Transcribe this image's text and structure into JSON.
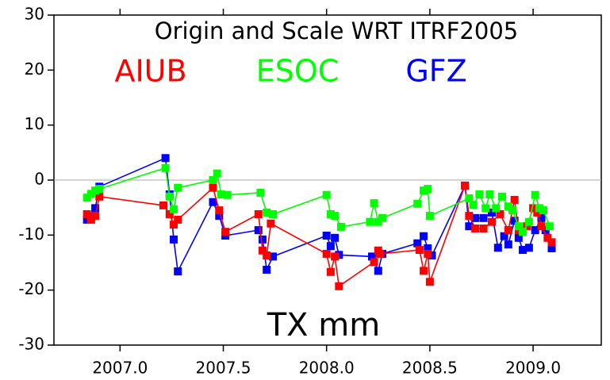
{
  "chart_data": {
    "type": "line",
    "title": "Origin and Scale WRT ITRF2005",
    "x_label": "TX mm",
    "xlim": [
      2006.68,
      2009.33
    ],
    "xticks": [
      {
        "value": 2007,
        "label": "2007.0"
      },
      {
        "value": 2007.5,
        "label": "2007.5"
      },
      {
        "value": 2008,
        "label": "2008.0"
      },
      {
        "value": 2008.5,
        "label": "2008.5"
      },
      {
        "value": 2009,
        "label": "2009.0"
      }
    ],
    "ylim": [
      -30,
      30
    ],
    "yticks": [
      -30,
      -20,
      -10,
      0,
      10,
      20,
      30
    ],
    "zero_line": true,
    "series": [
      {
        "name": "AIUB",
        "color": "#ff0000",
        "x": [
          2006.84,
          2006.86,
          2006.88,
          2006.9,
          2007.21,
          2007.24,
          2007.26,
          2007.28,
          2007.45,
          2007.48,
          2007.51,
          2007.67,
          2007.69,
          2007.71,
          2007.73,
          2008.0,
          2008.02,
          2008.04,
          2008.06,
          2008.23,
          2008.25,
          2008.26,
          2008.45,
          2008.47,
          2008.49,
          2008.5,
          2008.67,
          2008.69,
          2008.72,
          2008.76,
          2008.8,
          2008.84,
          2008.88,
          2008.91,
          2008.93,
          2008.97,
          2009.0,
          2009.02,
          2009.04,
          2009.07,
          2009.09
        ],
        "values": [
          -6.2,
          -7.2,
          -6.5,
          -3.0,
          -4.6,
          -6.2,
          -8.1,
          -7.2,
          -1.4,
          -5.5,
          -9.4,
          -6.2,
          -12.8,
          -13.7,
          -7.9,
          -13.4,
          -16.7,
          -13.9,
          -19.3,
          -14.9,
          -12.8,
          -13.4,
          -12.7,
          -16.5,
          -13.4,
          -18.5,
          -1.0,
          -6.5,
          -8.8,
          -8.8,
          -7.6,
          -6.2,
          -9.1,
          -3.6,
          -9.1,
          -8.4,
          -5.1,
          -5.9,
          -8.4,
          -10.5,
          -11.3
        ]
      },
      {
        "name": "ESOC",
        "color": "#00ff00",
        "x": [
          2006.84,
          2006.86,
          2006.88,
          2006.9,
          2007.22,
          2007.24,
          2007.26,
          2007.28,
          2007.45,
          2007.47,
          2007.49,
          2007.52,
          2007.68,
          2007.71,
          2007.74,
          2008.0,
          2008.02,
          2008.04,
          2008.07,
          2008.21,
          2008.23,
          2008.25,
          2008.27,
          2008.44,
          2008.47,
          2008.49,
          2008.5,
          2008.69,
          2008.71,
          2008.74,
          2008.77,
          2008.79,
          2008.82,
          2008.85,
          2008.88,
          2008.9,
          2008.93,
          2008.95,
          2008.98,
          2009.01,
          2009.03,
          2009.05,
          2009.08
        ],
        "values": [
          -3.2,
          -2.5,
          -1.9,
          -1.6,
          2.2,
          -3.0,
          -5.3,
          -1.4,
          0.0,
          1.2,
          -2.6,
          -2.7,
          -2.3,
          -5.9,
          -6.2,
          -2.7,
          -6.2,
          -6.5,
          -8.5,
          -7.6,
          -4.2,
          -7.6,
          -6.9,
          -4.3,
          -1.9,
          -1.6,
          -6.5,
          -3.3,
          -4.5,
          -2.6,
          -5.1,
          -2.6,
          -5.1,
          -3.0,
          -4.8,
          -5.5,
          -8.4,
          -9.4,
          -7.6,
          -2.7,
          -5.1,
          -5.5,
          -8.4
        ]
      },
      {
        "name": "GFZ",
        "color": "#0000ff",
        "x": [
          2006.84,
          2006.86,
          2006.88,
          2006.9,
          2007.22,
          2007.24,
          2007.26,
          2007.28,
          2007.45,
          2007.48,
          2007.51,
          2007.67,
          2007.69,
          2007.71,
          2007.74,
          2008.0,
          2008.02,
          2008.04,
          2008.06,
          2008.22,
          2008.25,
          2008.27,
          2008.44,
          2008.47,
          2008.49,
          2008.51,
          2008.67,
          2008.69,
          2008.72,
          2008.76,
          2008.8,
          2008.83,
          2008.86,
          2008.88,
          2008.91,
          2008.93,
          2008.95,
          2008.98,
          2009.01,
          2009.04,
          2009.06,
          2009.09
        ],
        "values": [
          -7.2,
          -6.6,
          -5.1,
          -1.2,
          4.0,
          -2.6,
          -10.8,
          -16.6,
          -4.0,
          -6.5,
          -10.1,
          -9.1,
          -10.8,
          -16.3,
          -13.9,
          -10.1,
          -12.0,
          -10.5,
          -13.6,
          -13.9,
          -16.5,
          -13.4,
          -11.5,
          -10.2,
          -12.4,
          -13.7,
          -1.0,
          -8.4,
          -6.9,
          -6.9,
          -5.9,
          -12.3,
          -10.2,
          -11.7,
          -7.4,
          -10.5,
          -12.7,
          -12.3,
          -9.1,
          -6.9,
          -9.1,
          -12.4
        ]
      }
    ]
  }
}
